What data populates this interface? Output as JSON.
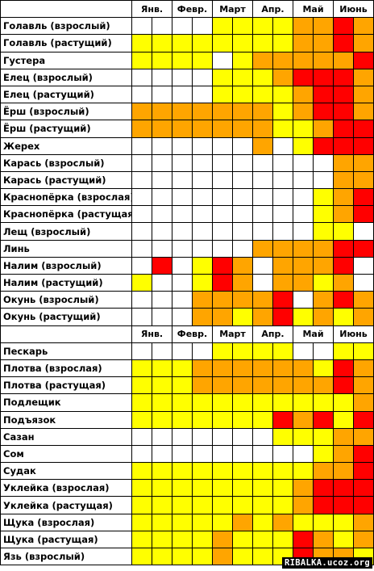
{
  "legend": {
    "w": "#ffffff",
    "y": "#ffff00",
    "o": "#ffa500",
    "r": "#ff0000"
  },
  "months": [
    "Янв.",
    "Февр.",
    "Март",
    "Апр.",
    "Май",
    "Июнь"
  ],
  "blocks": [
    {
      "rows": [
        {
          "name": "Голавль (взрослый)",
          "cells": "wwwwyyyyooroo"
        },
        {
          "name": "Голавль (растущий)",
          "cells": "yyyyyyyyooroo"
        },
        {
          "name": "Густера",
          "cells": "yyyywyooooorr"
        },
        {
          "name": "Елец (взрослый)",
          "cells": "wwwwyyyorrroo"
        },
        {
          "name": "Елец (растущий)",
          "cells": "wwwwyyyyorroo"
        },
        {
          "name": "Ёрш (взрослый)",
          "cells": "oooooooyorroo"
        },
        {
          "name": "Ёрш (растущий)",
          "cells": "oooooooyyorro"
        },
        {
          "name": "Жерех",
          "cells": "wwwwwwowyrrror"
        },
        {
          "name": "Карась (взрослый)",
          "cells": "wwwwwwwwwwoo"
        },
        {
          "name": "Карась (растущий)",
          "cells": "wwwwwwwwwwoo"
        },
        {
          "name": "Краснопёрка (взрослая)",
          "cells": "wwwwwwwwwyorr"
        },
        {
          "name": "Краснопёрка (растущая)",
          "cells": "wwwwwwwwwyorr"
        },
        {
          "name": "Лещ (взрослый)",
          "cells": "wwwwwwwwwyywr"
        },
        {
          "name": "Линь",
          "cells": "wwwwwwoooorrr"
        },
        {
          "name": "Налим (взрослый)",
          "cells": "wrwyrowooorww"
        },
        {
          "name": "Налим (растущий)",
          "cells": "ywwyrowooyoww"
        },
        {
          "name": "Окунь (взрослый)",
          "cells": "wwwoooorworoo"
        },
        {
          "name": "Окунь (растущий)",
          "cells": "wwwooyoryoyo"
        }
      ]
    },
    {
      "rows": [
        {
          "name": "Пескарь",
          "cells": "wwwwyyyywwyyo"
        },
        {
          "name": "Плотва (взрослая)",
          "cells": "yyyooooooyroo"
        },
        {
          "name": "Плотва (растущая)",
          "cells": "yyyoooooooroo"
        },
        {
          "name": "Подлещик",
          "cells": "yyyyyyyyyyyor"
        },
        {
          "name": "Подъязок",
          "cells": "yyyyyyyroryro"
        },
        {
          "name": "Сазан",
          "cells": "wwwwwwwyyyoor"
        },
        {
          "name": "Сом",
          "cells": "wwwwwwwwwyorr"
        },
        {
          "name": "Судак",
          "cells": "yyyyyyyyyoorr"
        },
        {
          "name": "Уклейка (взрослая)",
          "cells": "yyyyyyyyorrrr"
        },
        {
          "name": "Уклейка (растущая)",
          "cells": "yyyyyyyyorrrr"
        },
        {
          "name": "Щука (взрослая)",
          "cells": "yyyyyoyoyyyoo"
        },
        {
          "name": "Щука (растущая)",
          "cells": "yyyyoyyyroyoo"
        },
        {
          "name": "Язь (взрослый)",
          "cells": "yyyyoyyyrooyr"
        }
      ]
    }
  ],
  "watermark": "RIBALKA.ucoz.org"
}
